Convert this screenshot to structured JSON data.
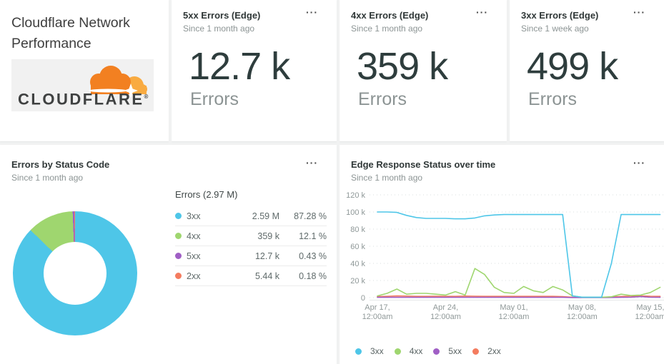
{
  "icons": {
    "menu": "···"
  },
  "title_card": {
    "line1": "Cloudflare Network",
    "line2": "Performance",
    "logo_text": "CLOUDFLARE",
    "logo_mark": "®"
  },
  "kpi_cards": [
    {
      "title": "5xx Errors (Edge)",
      "subtitle": "Since 1 month ago",
      "value": "12.7 k",
      "unit": "Errors"
    },
    {
      "title": "4xx Errors (Edge)",
      "subtitle": "Since 1 month ago",
      "value": "359 k",
      "unit": "Errors"
    },
    {
      "title": "3xx Errors (Edge)",
      "subtitle": "Since 1 week ago",
      "value": "499 k",
      "unit": "Errors"
    }
  ],
  "pie_card": {
    "title": "Errors by Status Code",
    "subtitle": "Since 1 month ago"
  },
  "line_card": {
    "title": "Edge Response Status over time",
    "subtitle": "Since 1 month ago"
  },
  "colors": {
    "3xx": "#4ec6e8",
    "4xx": "#9fd66f",
    "5xx": "#a05fc5",
    "2xx": "#f47c5f",
    "accent_orange": "#f28021"
  },
  "chart_data": [
    {
      "type": "pie",
      "title": "Errors by Status Code",
      "donut": true,
      "total_label": "Errors (2.97 M)",
      "slices": [
        {
          "name": "3xx",
          "value_label": "2.59 M",
          "pct": 87.28,
          "pct_label": "87.28 %",
          "color": "#4ec6e8"
        },
        {
          "name": "4xx",
          "value_label": "359 k",
          "pct": 12.1,
          "pct_label": "12.1 %",
          "color": "#9fd66f"
        },
        {
          "name": "5xx",
          "value_label": "12.7 k",
          "pct": 0.43,
          "pct_label": "0.43 %",
          "color": "#a05fc5"
        },
        {
          "name": "2xx",
          "value_label": "5.44 k",
          "pct": 0.18,
          "pct_label": "0.18 %",
          "color": "#f47c5f"
        }
      ]
    },
    {
      "type": "line",
      "title": "Edge Response Status over time",
      "ylim_k": [
        0,
        120
      ],
      "grid": true,
      "legend_position": "bottom",
      "y_ticks": [
        {
          "value": 0,
          "label": "0"
        },
        {
          "value": 20,
          "label": "20 k"
        },
        {
          "value": 40,
          "label": "40 k"
        },
        {
          "value": 60,
          "label": "60 k"
        },
        {
          "value": 80,
          "label": "80 k"
        },
        {
          "value": 100,
          "label": "100 k"
        },
        {
          "value": 120,
          "label": "120 k"
        }
      ],
      "x_ticks": [
        {
          "day": 0,
          "line1": "Apr 17,",
          "line2": "12:00am"
        },
        {
          "day": 7,
          "line1": "Apr 24,",
          "line2": "12:00am"
        },
        {
          "day": 14,
          "line1": "May 01,",
          "line2": "12:00am"
        },
        {
          "day": 21,
          "line1": "May 08,",
          "line2": "12:00am"
        },
        {
          "day": 28,
          "line1": "May 15,",
          "line2": "12:00am"
        }
      ],
      "series": [
        {
          "name": "3xx",
          "color": "#4ec6e8",
          "values_k": [
            100,
            100,
            99.5,
            96,
            93.5,
            92.5,
            92.5,
            92.5,
            92,
            92,
            93,
            95.5,
            96.5,
            97,
            97,
            97,
            97,
            97,
            97,
            97,
            2,
            0.5,
            0.5,
            0.5,
            40,
            97,
            97,
            97,
            97,
            97
          ]
        },
        {
          "name": "4xx",
          "color": "#9fd66f",
          "values_k": [
            2,
            5,
            10,
            4,
            5,
            5,
            4,
            3,
            7,
            3,
            34,
            27,
            12,
            6,
            5,
            13,
            8,
            6,
            13,
            9,
            2,
            0.5,
            0.5,
            0.5,
            1,
            4,
            2.5,
            3,
            6,
            12
          ]
        },
        {
          "name": "5xx",
          "color": "#a05fc5",
          "values_k": [
            0.3,
            0.3,
            0.3,
            0.3,
            0.3,
            0.3,
            0.3,
            0.3,
            0.3,
            0.3,
            0.3,
            0.3,
            0.3,
            0.3,
            0.3,
            0.3,
            0.3,
            0.3,
            0.3,
            0.3,
            0.1,
            0.1,
            0.1,
            0.1,
            0.2,
            0.3,
            0.5,
            1.2,
            0.4,
            0.3
          ]
        },
        {
          "name": "2xx",
          "color": "#f47c5f",
          "values_k": [
            1.2,
            1.5,
            2,
            1.8,
            1.5,
            1.5,
            1.6,
            1.5,
            1.5,
            1.8,
            1.6,
            1.5,
            1.5,
            1.5,
            1.5,
            1.5,
            1.5,
            1.5,
            1.5,
            1.2,
            0.5,
            0.3,
            0.3,
            0.3,
            0.8,
            1.3,
            1.8,
            2,
            1.6,
            1.5
          ]
        }
      ]
    }
  ]
}
